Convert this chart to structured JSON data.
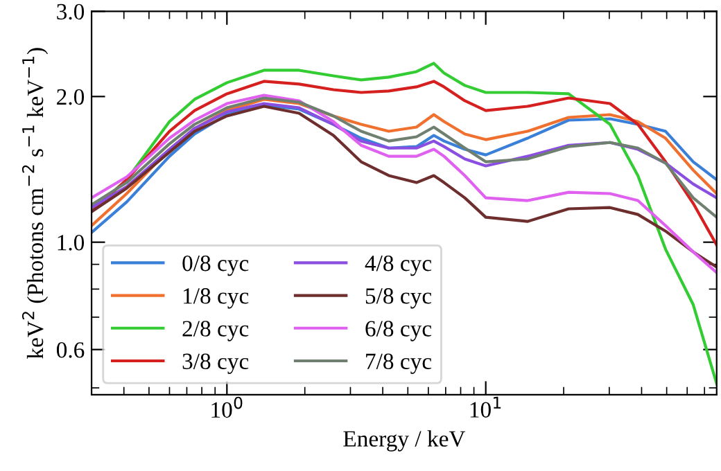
{
  "chart_data": {
    "type": "line",
    "xlabel": "Energy / keV",
    "ylabel": "keV$^{2}$ (Photons cm$^{−2}$ s$^{−1}$ keV$^{−1}$)",
    "log": "xy",
    "xlim": [
      0.3,
      78
    ],
    "ylim": [
      0.484,
      3.0
    ],
    "xticks": [
      {
        "value": 1,
        "label": "10$^{0}$"
      },
      {
        "value": 10,
        "label": "10$^{1}$"
      }
    ],
    "yticks": [
      {
        "value": 0.6,
        "label": "0.6"
      },
      {
        "value": 1.0,
        "label": "1.0"
      },
      {
        "value": 2.0,
        "label": "2.0"
      },
      {
        "value": 3.0,
        "label": "3.0"
      }
    ],
    "legend": "bottom left",
    "grid": false,
    "marker": "none",
    "line_style": "solid",
    "x": [
      0.3,
      0.41,
      0.6,
      0.75,
      1.0,
      1.39,
      1.9,
      2.58,
      3.3,
      4.22,
      5.4,
      6.3,
      6.9,
      8.3,
      10,
      14.5,
      20.9,
      30.2,
      38.7,
      49.5,
      63.3,
      78
    ],
    "series": [
      {
        "name": "0/8 cyc",
        "color": "#3a7fd8",
        "values": [
          1.047,
          1.211,
          1.505,
          1.673,
          1.835,
          1.921,
          1.884,
          1.752,
          1.64,
          1.565,
          1.576,
          1.662,
          1.618,
          1.556,
          1.515,
          1.64,
          1.787,
          1.799,
          1.752,
          1.695,
          1.466,
          1.346
        ]
      },
      {
        "name": "1/8 cyc",
        "color": "#f07030",
        "values": [
          1.082,
          1.26,
          1.556,
          1.718,
          1.871,
          1.973,
          1.934,
          1.823,
          1.752,
          1.695,
          1.729,
          1.835,
          1.775,
          1.673,
          1.629,
          1.695,
          1.811,
          1.835,
          1.775,
          1.64,
          1.409,
          1.26
        ]
      },
      {
        "name": "2/8 cyc",
        "color": "#33cc33",
        "values": [
          1.164,
          1.346,
          1.775,
          1.973,
          2.136,
          2.266,
          2.266,
          2.207,
          2.164,
          2.193,
          2.251,
          2.342,
          2.236,
          2.108,
          2.039,
          2.039,
          2.026,
          1.752,
          1.373,
          0.967,
          0.743,
          0.51
        ]
      },
      {
        "name": "3/8 cyc",
        "color": "#d62020",
        "values": [
          1.156,
          1.346,
          1.695,
          1.871,
          2.026,
          2.15,
          2.122,
          2.066,
          2.039,
          2.053,
          2.094,
          2.15,
          2.094,
          1.96,
          1.871,
          1.909,
          1.986,
          1.934,
          1.752,
          1.466,
          1.203,
          0.987
        ]
      },
      {
        "name": "4/8 cyc",
        "color": "#8a4fe0",
        "values": [
          1.179,
          1.302,
          1.556,
          1.718,
          1.859,
          1.934,
          1.896,
          1.752,
          1.618,
          1.565,
          1.565,
          1.618,
          1.576,
          1.486,
          1.438,
          1.505,
          1.586,
          1.607,
          1.556,
          1.457,
          1.319,
          1.235
        ]
      },
      {
        "name": "5/8 cyc",
        "color": "#6e2e2e",
        "values": [
          1.156,
          1.293,
          1.535,
          1.695,
          1.823,
          1.909,
          1.847,
          1.662,
          1.466,
          1.373,
          1.328,
          1.373,
          1.328,
          1.235,
          1.126,
          1.104,
          1.172,
          1.179,
          1.141,
          1.054,
          0.955,
          0.888
        ]
      },
      {
        "name": "6/8 cyc",
        "color": "#e060f0",
        "values": [
          1.235,
          1.364,
          1.64,
          1.787,
          1.934,
          2.012,
          1.96,
          1.775,
          1.586,
          1.505,
          1.505,
          1.556,
          1.505,
          1.373,
          1.235,
          1.219,
          1.268,
          1.26,
          1.219,
          1.082,
          0.955,
          0.865
        ]
      },
      {
        "name": "7/8 cyc",
        "color": "#708070",
        "values": [
          1.195,
          1.328,
          1.597,
          1.752,
          1.896,
          1.986,
          1.947,
          1.823,
          1.695,
          1.618,
          1.651,
          1.729,
          1.673,
          1.565,
          1.466,
          1.486,
          1.576,
          1.607,
          1.565,
          1.457,
          1.235,
          1.126
        ]
      }
    ]
  }
}
